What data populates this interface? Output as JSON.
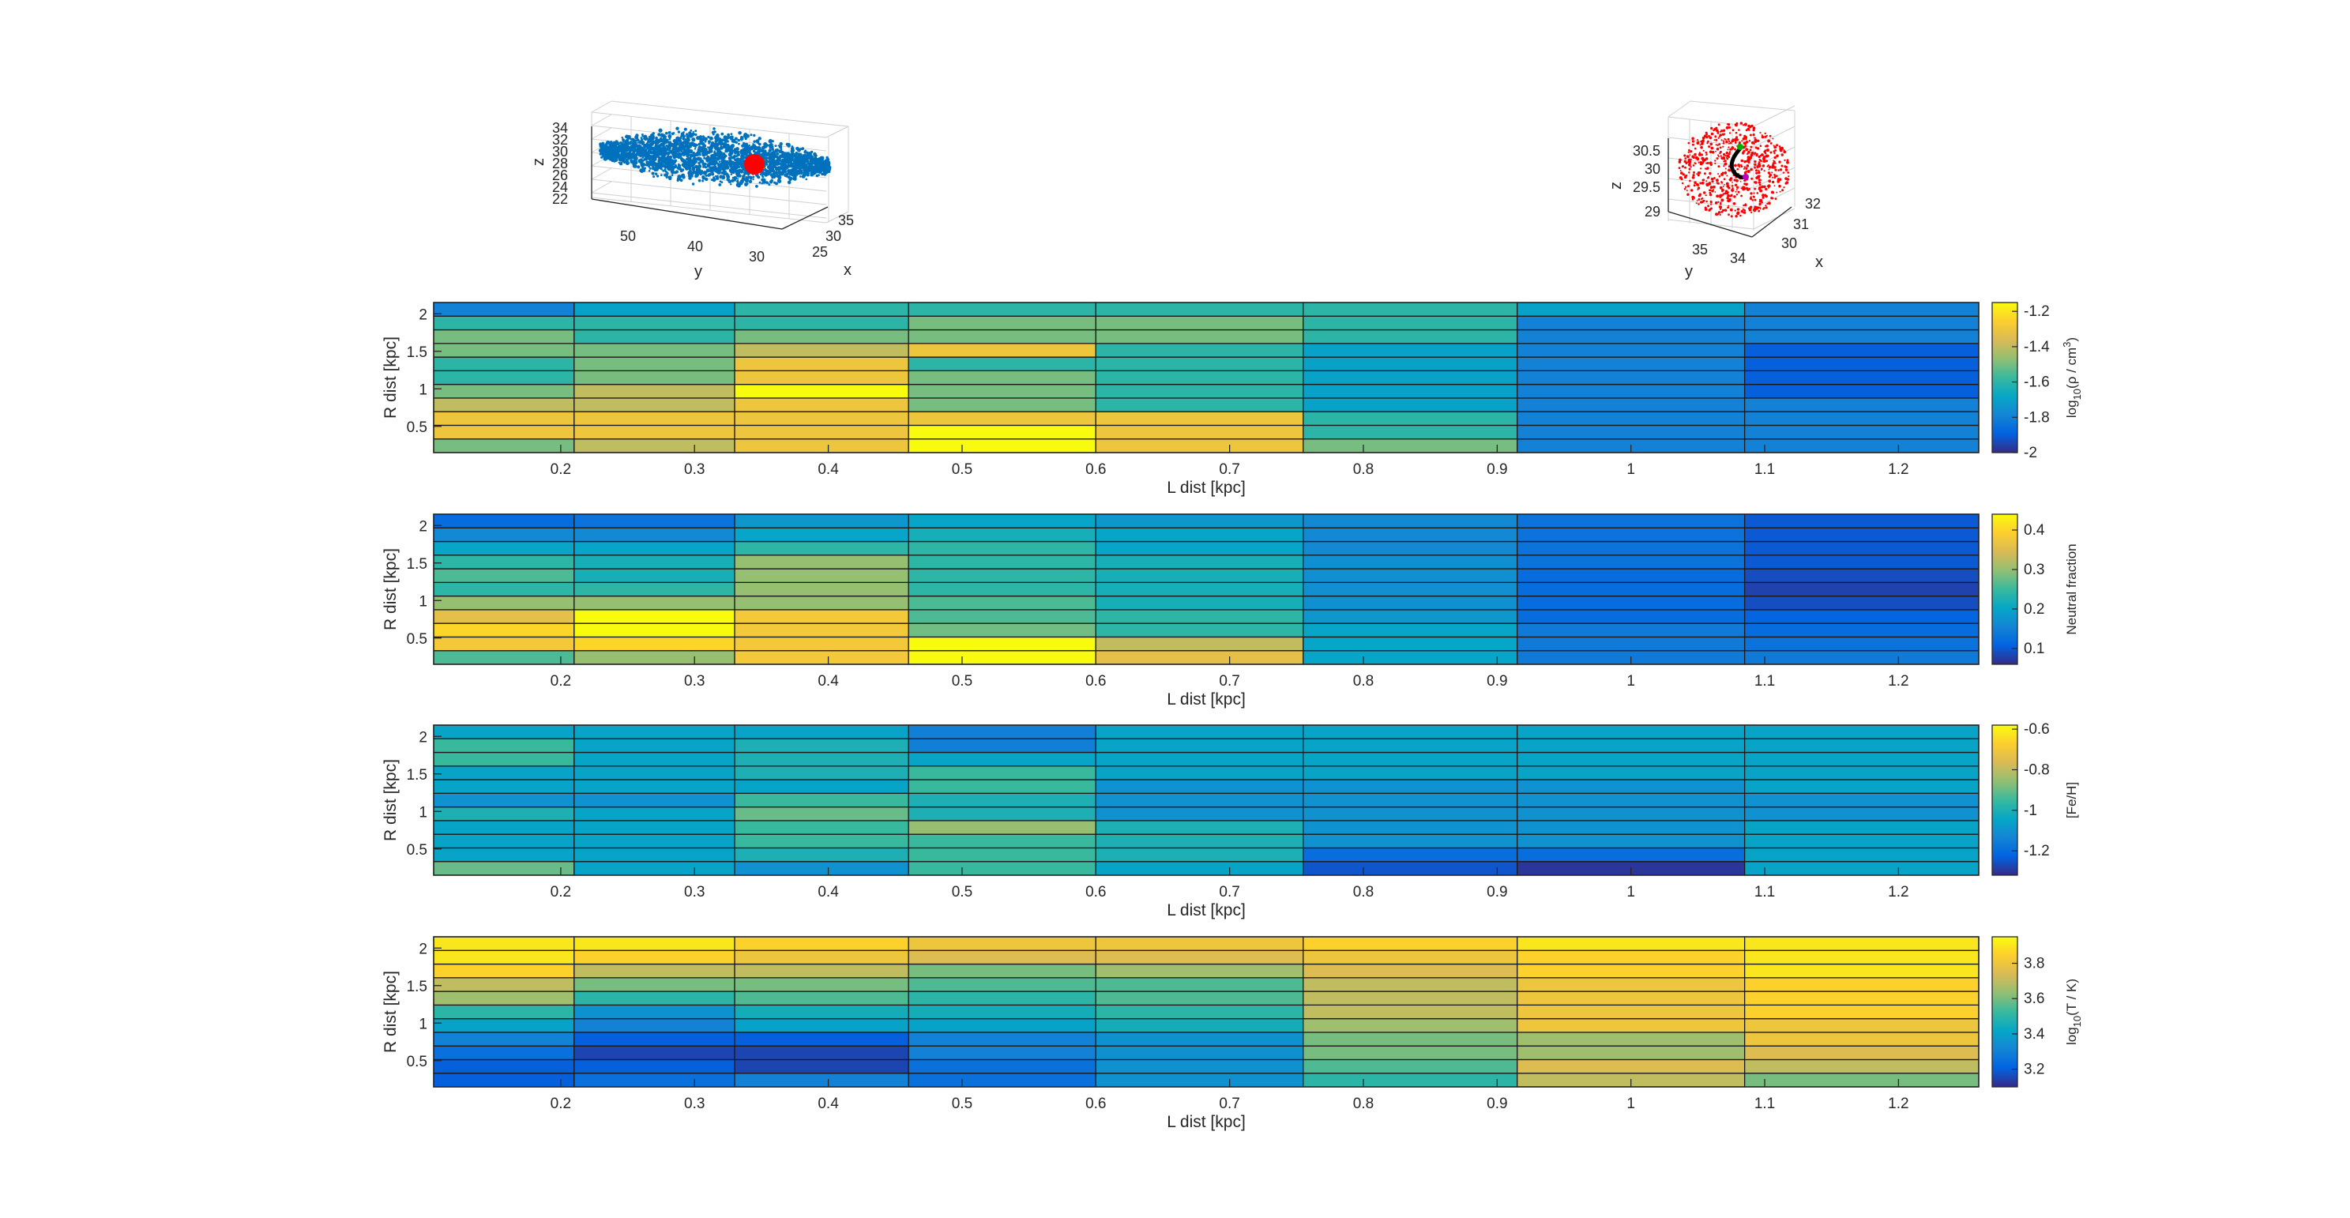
{
  "colormap": [
    "#352a87",
    "#0363e1",
    "#1485d4",
    "#06a7c6",
    "#38b99e",
    "#92bf73",
    "#d9ba56",
    "#fcce2e",
    "#f9fb0e"
  ],
  "top_plots": [
    {
      "type": "scatter3d",
      "color": "#0072bd",
      "highlight_color": "#ff0000",
      "xlabel": "x",
      "ylabel": "y",
      "zlabel": "z",
      "x_ticks": [
        "25",
        "30",
        "35"
      ],
      "y_ticks": [
        "50",
        "40",
        "30"
      ],
      "z_ticks": [
        "22",
        "24",
        "26",
        "28",
        "30",
        "32",
        "34"
      ]
    },
    {
      "type": "scatter3d",
      "color": "#ff0000",
      "highlight_color": "#000000",
      "xlabel": "x",
      "ylabel": "y",
      "zlabel": "z",
      "x_ticks": [
        "30",
        "31",
        "32"
      ],
      "y_ticks": [
        "35",
        "34"
      ],
      "z_ticks": [
        "29",
        "29.5",
        "30",
        "30.5"
      ]
    }
  ],
  "chart_data": [
    {
      "type": "heatmap",
      "xlabel": "L dist [kpc]",
      "ylabel": "R dist [kpc]",
      "x_edges": [
        0.105,
        0.21,
        0.33,
        0.46,
        0.6,
        0.755,
        0.915,
        1.085,
        1.26
      ],
      "y_range": [
        0.15,
        2.15
      ],
      "xlim": [
        0.105,
        1.26
      ],
      "x_ticks": [
        "0.2",
        "0.3",
        "0.4",
        "0.5",
        "0.6",
        "0.7",
        "0.8",
        "0.9",
        "1",
        "1.1",
        "1.2"
      ],
      "y_ticks": [
        "0.5",
        "1",
        "1.5",
        "2"
      ],
      "colorbar_label": "log10(ρ / cm^3)",
      "clim": [
        -2.0,
        -1.15
      ],
      "colorbar_ticks": [
        "-2",
        "-1.8",
        "-1.6",
        "-1.4",
        "-1.2"
      ],
      "values": [
        [
          -1.5,
          -1.4,
          -1.3,
          -1.15,
          -1.3,
          -1.5,
          -1.8,
          -1.8
        ],
        [
          -1.3,
          -1.3,
          -1.3,
          -1.15,
          -1.3,
          -1.6,
          -1.8,
          -1.8
        ],
        [
          -1.3,
          -1.3,
          -1.3,
          -1.3,
          -1.3,
          -1.6,
          -1.8,
          -1.8
        ],
        [
          -1.4,
          -1.4,
          -1.3,
          -1.5,
          -1.6,
          -1.7,
          -1.8,
          -1.8
        ],
        [
          -1.5,
          -1.4,
          -1.15,
          -1.5,
          -1.6,
          -1.7,
          -1.8,
          -1.9
        ],
        [
          -1.6,
          -1.5,
          -1.3,
          -1.5,
          -1.6,
          -1.7,
          -1.8,
          -1.9
        ],
        [
          -1.6,
          -1.5,
          -1.3,
          -1.6,
          -1.6,
          -1.7,
          -1.8,
          -1.9
        ],
        [
          -1.5,
          -1.5,
          -1.4,
          -1.3,
          -1.6,
          -1.7,
          -1.8,
          -1.9
        ],
        [
          -1.5,
          -1.6,
          -1.5,
          -1.5,
          -1.5,
          -1.6,
          -1.8,
          -1.8
        ],
        [
          -1.6,
          -1.6,
          -1.6,
          -1.5,
          -1.5,
          -1.6,
          -1.8,
          -1.8
        ],
        [
          -1.8,
          -1.7,
          -1.6,
          -1.6,
          -1.6,
          -1.6,
          -1.7,
          -1.8
        ]
      ]
    },
    {
      "type": "heatmap",
      "xlabel": "L dist [kpc]",
      "ylabel": "R dist [kpc]",
      "x_edges": [
        0.105,
        0.21,
        0.33,
        0.46,
        0.6,
        0.755,
        0.915,
        1.085,
        1.26
      ],
      "y_range": [
        0.15,
        2.15
      ],
      "xlim": [
        0.105,
        1.26
      ],
      "x_ticks": [
        "0.2",
        "0.3",
        "0.4",
        "0.5",
        "0.6",
        "0.7",
        "0.8",
        "0.9",
        "1",
        "1.1",
        "1.2"
      ],
      "y_ticks": [
        "0.5",
        "1",
        "1.5",
        "2"
      ],
      "colorbar_label": "Neutral fraction",
      "clim": [
        0.06,
        0.44
      ],
      "colorbar_ticks": [
        "0.1",
        "0.2",
        "0.3",
        "0.4"
      ],
      "values": [
        [
          0.26,
          0.3,
          0.38,
          0.44,
          0.36,
          0.2,
          0.14,
          0.14
        ],
        [
          0.38,
          0.4,
          0.38,
          0.44,
          0.33,
          0.2,
          0.14,
          0.13
        ],
        [
          0.4,
          0.44,
          0.38,
          0.28,
          0.24,
          0.2,
          0.14,
          0.12
        ],
        [
          0.36,
          0.44,
          0.38,
          0.26,
          0.24,
          0.18,
          0.12,
          0.11
        ],
        [
          0.3,
          0.3,
          0.3,
          0.26,
          0.22,
          0.17,
          0.12,
          0.09
        ],
        [
          0.24,
          0.24,
          0.3,
          0.24,
          0.22,
          0.17,
          0.12,
          0.08
        ],
        [
          0.26,
          0.22,
          0.3,
          0.24,
          0.22,
          0.17,
          0.12,
          0.09
        ],
        [
          0.24,
          0.22,
          0.3,
          0.24,
          0.22,
          0.17,
          0.13,
          0.1
        ],
        [
          0.2,
          0.2,
          0.24,
          0.24,
          0.2,
          0.16,
          0.13,
          0.1
        ],
        [
          0.16,
          0.16,
          0.2,
          0.22,
          0.2,
          0.16,
          0.13,
          0.1
        ],
        [
          0.12,
          0.13,
          0.18,
          0.2,
          0.18,
          0.16,
          0.13,
          0.1
        ]
      ]
    },
    {
      "type": "heatmap",
      "xlabel": "L dist [kpc]",
      "ylabel": "R dist [kpc]",
      "x_edges": [
        0.105,
        0.21,
        0.33,
        0.46,
        0.6,
        0.755,
        0.915,
        1.085,
        1.26
      ],
      "y_range": [
        0.15,
        2.15
      ],
      "xlim": [
        0.105,
        1.26
      ],
      "x_ticks": [
        "0.2",
        "0.3",
        "0.4",
        "0.5",
        "0.6",
        "0.7",
        "0.8",
        "0.9",
        "1",
        "1.1",
        "1.2"
      ],
      "y_ticks": [
        "0.5",
        "1",
        "1.5",
        "2"
      ],
      "colorbar_label": "[Fe/H]",
      "clim": [
        -1.32,
        -0.58
      ],
      "colorbar_ticks": [
        "-1.2",
        "-1",
        "-0.8",
        "-0.6"
      ],
      "values": [
        [
          -0.9,
          -1.05,
          -1.1,
          -0.95,
          -1.05,
          -1.25,
          -1.3,
          -1.05
        ],
        [
          -1.05,
          -1.05,
          -1.0,
          -0.95,
          -1.0,
          -1.2,
          -1.2,
          -1.05
        ],
        [
          -1.05,
          -1.05,
          -0.95,
          -0.95,
          -1.0,
          -1.1,
          -1.1,
          -1.05
        ],
        [
          -1.05,
          -1.05,
          -0.95,
          -0.85,
          -1.0,
          -1.1,
          -1.1,
          -1.05
        ],
        [
          -1.0,
          -1.05,
          -0.9,
          -1.0,
          -1.1,
          -1.1,
          -1.1,
          -1.1
        ],
        [
          -1.1,
          -1.1,
          -0.95,
          -1.0,
          -1.1,
          -1.1,
          -1.1,
          -1.1
        ],
        [
          -1.05,
          -1.05,
          -1.05,
          -0.95,
          -1.1,
          -1.1,
          -1.1,
          -1.05
        ],
        [
          -1.05,
          -1.05,
          -1.0,
          -0.95,
          -1.05,
          -1.05,
          -1.05,
          -1.05
        ],
        [
          -0.95,
          -1.05,
          -1.0,
          -1.05,
          -1.05,
          -1.05,
          -1.05,
          -1.05
        ],
        [
          -0.95,
          -1.05,
          -1.0,
          -1.15,
          -1.05,
          -1.05,
          -1.05,
          -1.05
        ],
        [
          -1.05,
          -1.05,
          -1.05,
          -1.15,
          -1.05,
          -1.05,
          -1.05,
          -1.05
        ]
      ]
    },
    {
      "type": "heatmap",
      "xlabel": "L dist [kpc]",
      "ylabel": "R dist [kpc]",
      "x_edges": [
        0.105,
        0.21,
        0.33,
        0.46,
        0.6,
        0.755,
        0.915,
        1.085,
        1.26
      ],
      "y_range": [
        0.15,
        2.15
      ],
      "xlim": [
        0.105,
        1.26
      ],
      "x_ticks": [
        "0.2",
        "0.3",
        "0.4",
        "0.5",
        "0.6",
        "0.7",
        "0.8",
        "0.9",
        "1",
        "1.1",
        "1.2"
      ],
      "y_ticks": [
        "0.5",
        "1",
        "1.5",
        "2"
      ],
      "colorbar_label": "log10(T / K)",
      "clim": [
        3.1,
        3.95
      ],
      "colorbar_ticks": [
        "3.2",
        "3.4",
        "3.6",
        "3.8"
      ],
      "values": [
        [
          3.2,
          3.25,
          3.3,
          3.25,
          3.35,
          3.5,
          3.7,
          3.6
        ],
        [
          3.2,
          3.2,
          3.15,
          3.25,
          3.35,
          3.55,
          3.75,
          3.7
        ],
        [
          3.25,
          3.15,
          3.15,
          3.3,
          3.35,
          3.6,
          3.65,
          3.75
        ],
        [
          3.3,
          3.2,
          3.2,
          3.3,
          3.35,
          3.6,
          3.65,
          3.8
        ],
        [
          3.4,
          3.3,
          3.4,
          3.4,
          3.45,
          3.65,
          3.8,
          3.8
        ],
        [
          3.5,
          3.35,
          3.45,
          3.45,
          3.5,
          3.7,
          3.8,
          3.85
        ],
        [
          3.65,
          3.5,
          3.55,
          3.5,
          3.55,
          3.7,
          3.8,
          3.85
        ],
        [
          3.7,
          3.6,
          3.6,
          3.55,
          3.55,
          3.7,
          3.8,
          3.85
        ],
        [
          3.85,
          3.7,
          3.7,
          3.6,
          3.65,
          3.75,
          3.85,
          3.9
        ],
        [
          3.9,
          3.85,
          3.8,
          3.75,
          3.75,
          3.8,
          3.85,
          3.9
        ],
        [
          3.9,
          3.9,
          3.85,
          3.8,
          3.8,
          3.85,
          3.9,
          3.9
        ]
      ]
    }
  ]
}
